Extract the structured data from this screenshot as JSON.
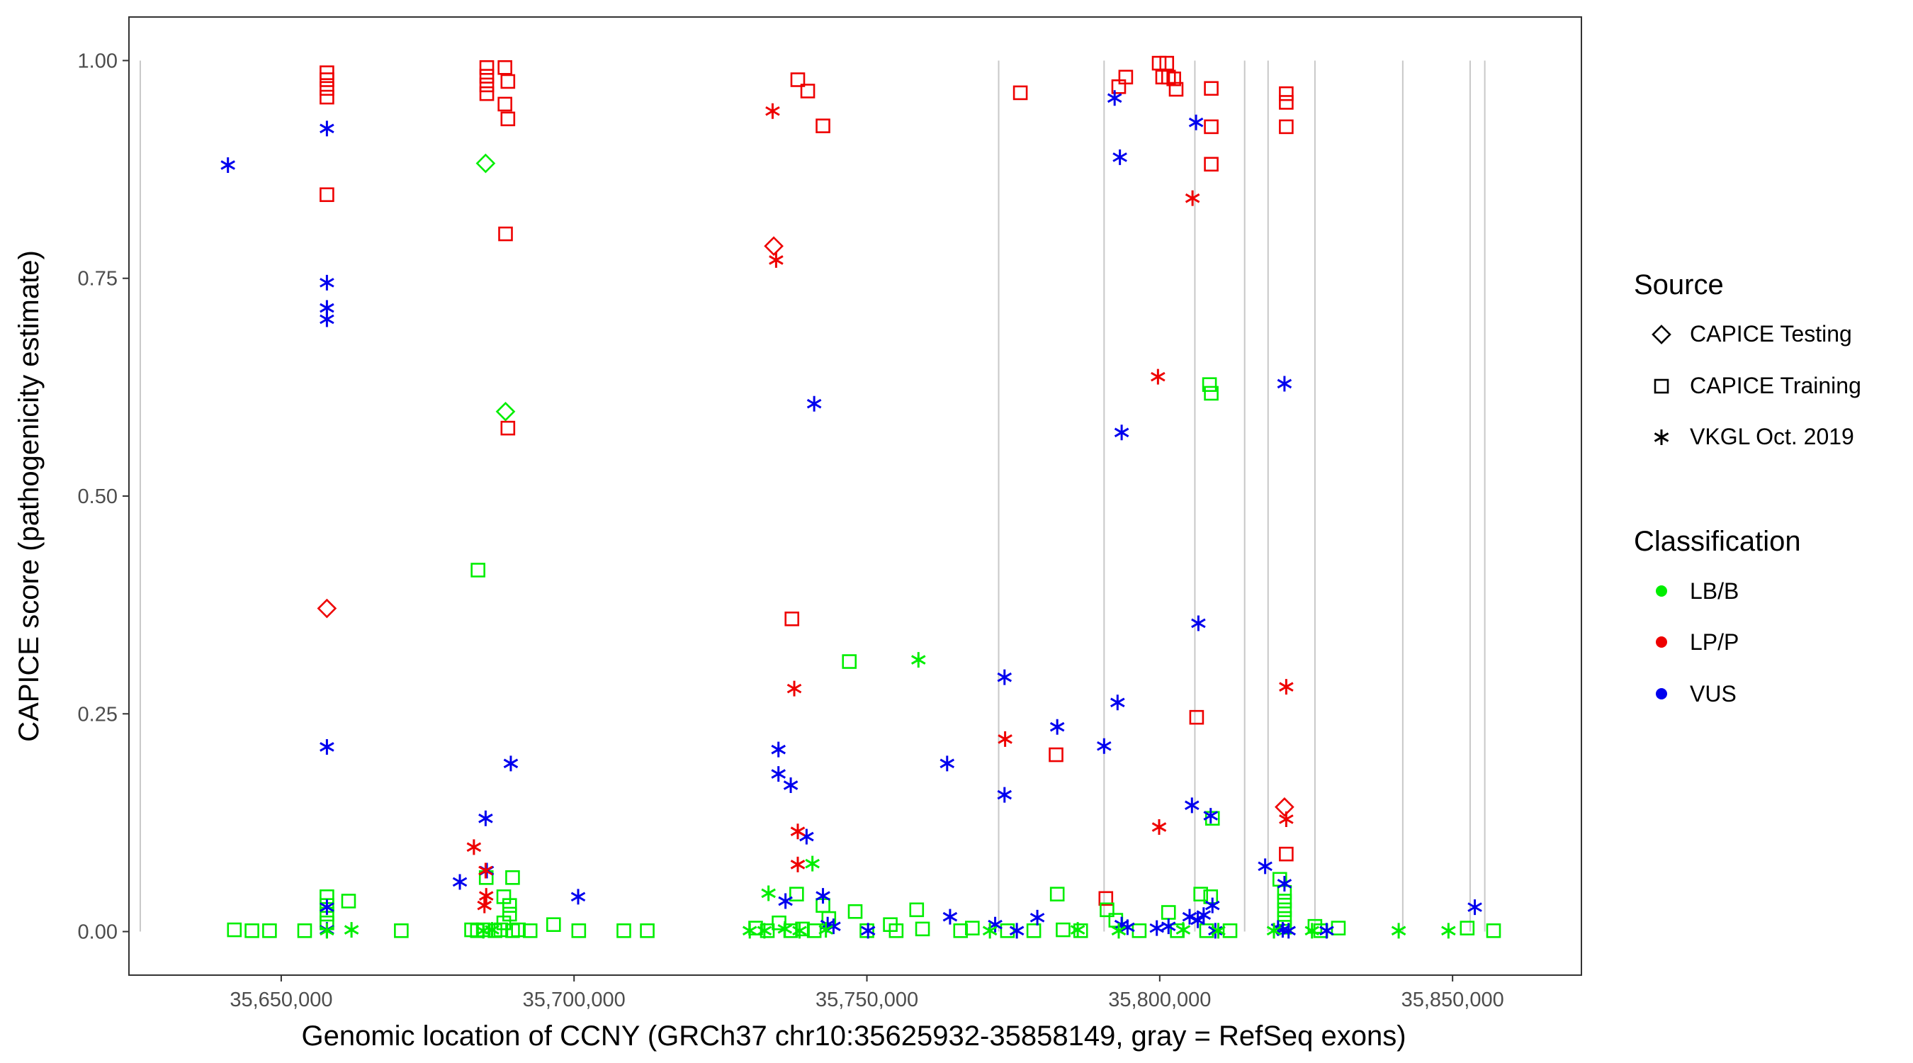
{
  "chart_data": {
    "type": "scatter",
    "title": "",
    "xlabel": "Genomic location of CCNY (GRCh37 chr10:35625932-35858149, gray = RefSeq exons)",
    "ylabel": "CAPICE score (pathogenicity estimate)",
    "xlim": [
      35624000,
      35872000
    ],
    "ylim": [
      -0.05,
      1.05
    ],
    "x_ticks": [
      35650000,
      35700000,
      35750000,
      35800000,
      35850000
    ],
    "x_tick_labels": [
      "35,650,000",
      "35,700,000",
      "35,750,000",
      "35,800,000",
      "35,850,000"
    ],
    "y_ticks": [
      0,
      0.25,
      0.5,
      0.75,
      1.0
    ],
    "y_tick_labels": [
      "0.00",
      "0.25",
      "0.50",
      "0.75",
      "1.00"
    ],
    "grid": false,
    "exon_lines": [
      35625932,
      35772500,
      35790500,
      35806000,
      35814500,
      35818500,
      35826500,
      35841500,
      35853000,
      35855500
    ],
    "legend_placement": "right",
    "legend": {
      "source_title": "Source",
      "source_items": [
        {
          "label": "CAPICE Testing",
          "shape": "diamond"
        },
        {
          "label": "CAPICE Training",
          "shape": "square"
        },
        {
          "label": "VKGL Oct. 2019",
          "shape": "asterisk"
        }
      ],
      "class_title": "Classification",
      "class_items": [
        {
          "label": "LB/B",
          "color": "#00ee00"
        },
        {
          "label": "LP/P",
          "color": "#ee0000"
        },
        {
          "label": "VUS",
          "color": "#0000ee"
        }
      ]
    },
    "colors": {
      "LB/B": "#00ee00",
      "LP/P": "#ee0000",
      "VUS": "#0000ee"
    },
    "series": [
      {
        "source": "CAPICE Testing",
        "classification": "LB/B",
        "points": [
          [
            35684900,
            0.882
          ],
          [
            35688300,
            0.597
          ]
        ]
      },
      {
        "source": "CAPICE Testing",
        "classification": "LP/P",
        "points": [
          [
            35657800,
            0.371
          ],
          [
            35734100,
            0.787
          ],
          [
            35821300,
            0.143
          ]
        ]
      },
      {
        "source": "CAPICE Training",
        "classification": "LP/P",
        "points": [
          [
            35657800,
            0.986
          ],
          [
            35657800,
            0.978
          ],
          [
            35657800,
            0.968
          ],
          [
            35657800,
            0.958
          ],
          [
            35657800,
            0.846
          ],
          [
            35685100,
            0.992
          ],
          [
            35685100,
            0.982
          ],
          [
            35685100,
            0.972
          ],
          [
            35685100,
            0.962
          ],
          [
            35688200,
            0.992
          ],
          [
            35688700,
            0.976
          ],
          [
            35688200,
            0.95
          ],
          [
            35688700,
            0.933
          ],
          [
            35688300,
            0.801
          ],
          [
            35688700,
            0.578
          ],
          [
            35738200,
            0.978
          ],
          [
            35739900,
            0.965
          ],
          [
            35742500,
            0.925
          ],
          [
            35737200,
            0.359
          ],
          [
            35776200,
            0.963
          ],
          [
            35793000,
            0.97
          ],
          [
            35794200,
            0.981
          ],
          [
            35799900,
            0.997
          ],
          [
            35801200,
            0.997
          ],
          [
            35800500,
            0.981
          ],
          [
            35801500,
            0.981
          ],
          [
            35802400,
            0.979
          ],
          [
            35802800,
            0.967
          ],
          [
            35808800,
            0.968
          ],
          [
            35808800,
            0.924
          ],
          [
            35808800,
            0.881
          ],
          [
            35821600,
            0.962
          ],
          [
            35821600,
            0.952
          ],
          [
            35821600,
            0.924
          ],
          [
            35821600,
            0.089
          ],
          [
            35806300,
            0.246
          ],
          [
            35782300,
            0.203
          ],
          [
            35790800,
            0.038
          ]
        ]
      },
      {
        "source": "CAPICE Training",
        "classification": "LB/B",
        "points": [
          [
            35642000,
            0.002
          ],
          [
            35645000,
            0.001
          ],
          [
            35648000,
            0.001
          ],
          [
            35654000,
            0.001
          ],
          [
            35657800,
            0.04
          ],
          [
            35657800,
            0.03
          ],
          [
            35657800,
            0.02
          ],
          [
            35657800,
            0.01
          ],
          [
            35661500,
            0.035
          ],
          [
            35670500,
            0.001
          ],
          [
            35683600,
            0.415
          ],
          [
            35685000,
            0.062
          ],
          [
            35689500,
            0.062
          ],
          [
            35688000,
            0.04
          ],
          [
            35689000,
            0.03
          ],
          [
            35689000,
            0.02
          ],
          [
            35688000,
            0.01
          ],
          [
            35682500,
            0.002
          ],
          [
            35683500,
            0.001
          ],
          [
            35684500,
            0.002
          ],
          [
            35686500,
            0.001
          ],
          [
            35687500,
            0.002
          ],
          [
            35689500,
            0.001
          ],
          [
            35690500,
            0.002
          ],
          [
            35692500,
            0.001
          ],
          [
            35696500,
            0.008
          ],
          [
            35700800,
            0.001
          ],
          [
            35708500,
            0.001
          ],
          [
            35712500,
            0.001
          ],
          [
            35731000,
            0.004
          ],
          [
            35733000,
            0.001
          ],
          [
            35735000,
            0.01
          ],
          [
            35737000,
            0.001
          ],
          [
            35738000,
            0.043
          ],
          [
            35739000,
            0.003
          ],
          [
            35741000,
            0.001
          ],
          [
            35742500,
            0.03
          ],
          [
            35743500,
            0.015
          ],
          [
            35747000,
            0.31
          ],
          [
            35748000,
            0.023
          ],
          [
            35750000,
            0.001
          ],
          [
            35754000,
            0.008
          ],
          [
            35755000,
            0.001
          ],
          [
            35758500,
            0.025
          ],
          [
            35759500,
            0.003
          ],
          [
            35766000,
            0.001
          ],
          [
            35768000,
            0.004
          ],
          [
            35774000,
            0.001
          ],
          [
            35778500,
            0.001
          ],
          [
            35782500,
            0.043
          ],
          [
            35783500,
            0.002
          ],
          [
            35786500,
            0.001
          ],
          [
            35791000,
            0.025
          ],
          [
            35792500,
            0.013
          ],
          [
            35796500,
            0.001
          ],
          [
            35801500,
            0.022
          ],
          [
            35803000,
            0.001
          ],
          [
            35807000,
            0.043
          ],
          [
            35808500,
            0.628
          ],
          [
            35808800,
            0.618
          ],
          [
            35809000,
            0.13
          ],
          [
            35808700,
            0.04
          ],
          [
            35808000,
            0.001
          ],
          [
            35812000,
            0.001
          ],
          [
            35820500,
            0.06
          ],
          [
            35821300,
            0.045
          ],
          [
            35821300,
            0.035
          ],
          [
            35821300,
            0.025
          ],
          [
            35821300,
            0.015
          ],
          [
            35821300,
            0.005
          ],
          [
            35826500,
            0.006
          ],
          [
            35827500,
            0.001
          ],
          [
            35830500,
            0.004
          ],
          [
            35852500,
            0.004
          ],
          [
            35857000,
            0.001
          ]
        ]
      },
      {
        "source": "VKGL Oct. 2019",
        "classification": "VUS",
        "points": [
          [
            35640900,
            0.88
          ],
          [
            35657800,
            0.922
          ],
          [
            35657800,
            0.745
          ],
          [
            35657800,
            0.716
          ],
          [
            35657800,
            0.703
          ],
          [
            35657800,
            0.212
          ],
          [
            35657800,
            0.028
          ],
          [
            35657800,
            0.002
          ],
          [
            35680500,
            0.057
          ],
          [
            35684900,
            0.13
          ],
          [
            35685100,
            0.07
          ],
          [
            35689200,
            0.193
          ],
          [
            35700700,
            0.04
          ],
          [
            35741000,
            0.606
          ],
          [
            35734900,
            0.209
          ],
          [
            35734900,
            0.181
          ],
          [
            35737000,
            0.168
          ],
          [
            35739700,
            0.109
          ],
          [
            35736100,
            0.035
          ],
          [
            35742500,
            0.041
          ],
          [
            35743300,
            0.008
          ],
          [
            35744300,
            0.006
          ],
          [
            35750200,
            0.001
          ],
          [
            35763700,
            0.193
          ],
          [
            35764200,
            0.017
          ],
          [
            35771900,
            0.008
          ],
          [
            35773500,
            0.292
          ],
          [
            35773500,
            0.157
          ],
          [
            35775600,
            0.001
          ],
          [
            35779100,
            0.016
          ],
          [
            35782500,
            0.235
          ],
          [
            35790500,
            0.213
          ],
          [
            35792300,
            0.957
          ],
          [
            35793200,
            0.889
          ],
          [
            35793500,
            0.573
          ],
          [
            35792800,
            0.263
          ],
          [
            35793500,
            0.008
          ],
          [
            35794500,
            0.005
          ],
          [
            35799500,
            0.004
          ],
          [
            35801500,
            0.006
          ],
          [
            35805100,
            0.017
          ],
          [
            35806200,
            0.929
          ],
          [
            35806600,
            0.354
          ],
          [
            35805500,
            0.145
          ],
          [
            35806500,
            0.013
          ],
          [
            35807500,
            0.019
          ],
          [
            35808700,
            0.133
          ],
          [
            35809000,
            0.03
          ],
          [
            35809500,
            0.001
          ],
          [
            35818000,
            0.075
          ],
          [
            35821300,
            0.629
          ],
          [
            35821300,
            0.055
          ],
          [
            35820200,
            0.004
          ],
          [
            35821000,
            0.002
          ],
          [
            35822000,
            0.001
          ],
          [
            35828500,
            0.001
          ],
          [
            35853800,
            0.028
          ]
        ]
      },
      {
        "source": "VKGL Oct. 2019",
        "classification": "LP/P",
        "points": [
          [
            35733900,
            0.942
          ],
          [
            35734500,
            0.771
          ],
          [
            35737600,
            0.279
          ],
          [
            35738200,
            0.115
          ],
          [
            35738200,
            0.077
          ],
          [
            35682900,
            0.097
          ],
          [
            35684900,
            0.07
          ],
          [
            35685000,
            0.041
          ],
          [
            35684700,
            0.03
          ],
          [
            35773600,
            0.221
          ],
          [
            35799700,
            0.637
          ],
          [
            35799900,
            0.12
          ],
          [
            35805600,
            0.842
          ],
          [
            35821600,
            0.281
          ],
          [
            35821600,
            0.129
          ]
        ]
      },
      {
        "source": "VKGL Oct. 2019",
        "classification": "LB/B",
        "points": [
          [
            35758800,
            0.312
          ],
          [
            35740700,
            0.078
          ],
          [
            35733200,
            0.044
          ],
          [
            35657800,
            0.001
          ],
          [
            35662000,
            0.002
          ],
          [
            35684500,
            0.001
          ],
          [
            35686000,
            0.002
          ],
          [
            35730000,
            0.001
          ],
          [
            35732500,
            0.001
          ],
          [
            35736000,
            0.003
          ],
          [
            35738500,
            0.001
          ],
          [
            35743000,
            0.002
          ],
          [
            35771000,
            0.001
          ],
          [
            35786000,
            0.002
          ],
          [
            35793000,
            0.001
          ],
          [
            35804000,
            0.002
          ],
          [
            35810000,
            0.001
          ],
          [
            35819500,
            0.001
          ],
          [
            35826000,
            0.001
          ],
          [
            35840800,
            0.001
          ],
          [
            35849300,
            0.001
          ]
        ]
      }
    ]
  }
}
